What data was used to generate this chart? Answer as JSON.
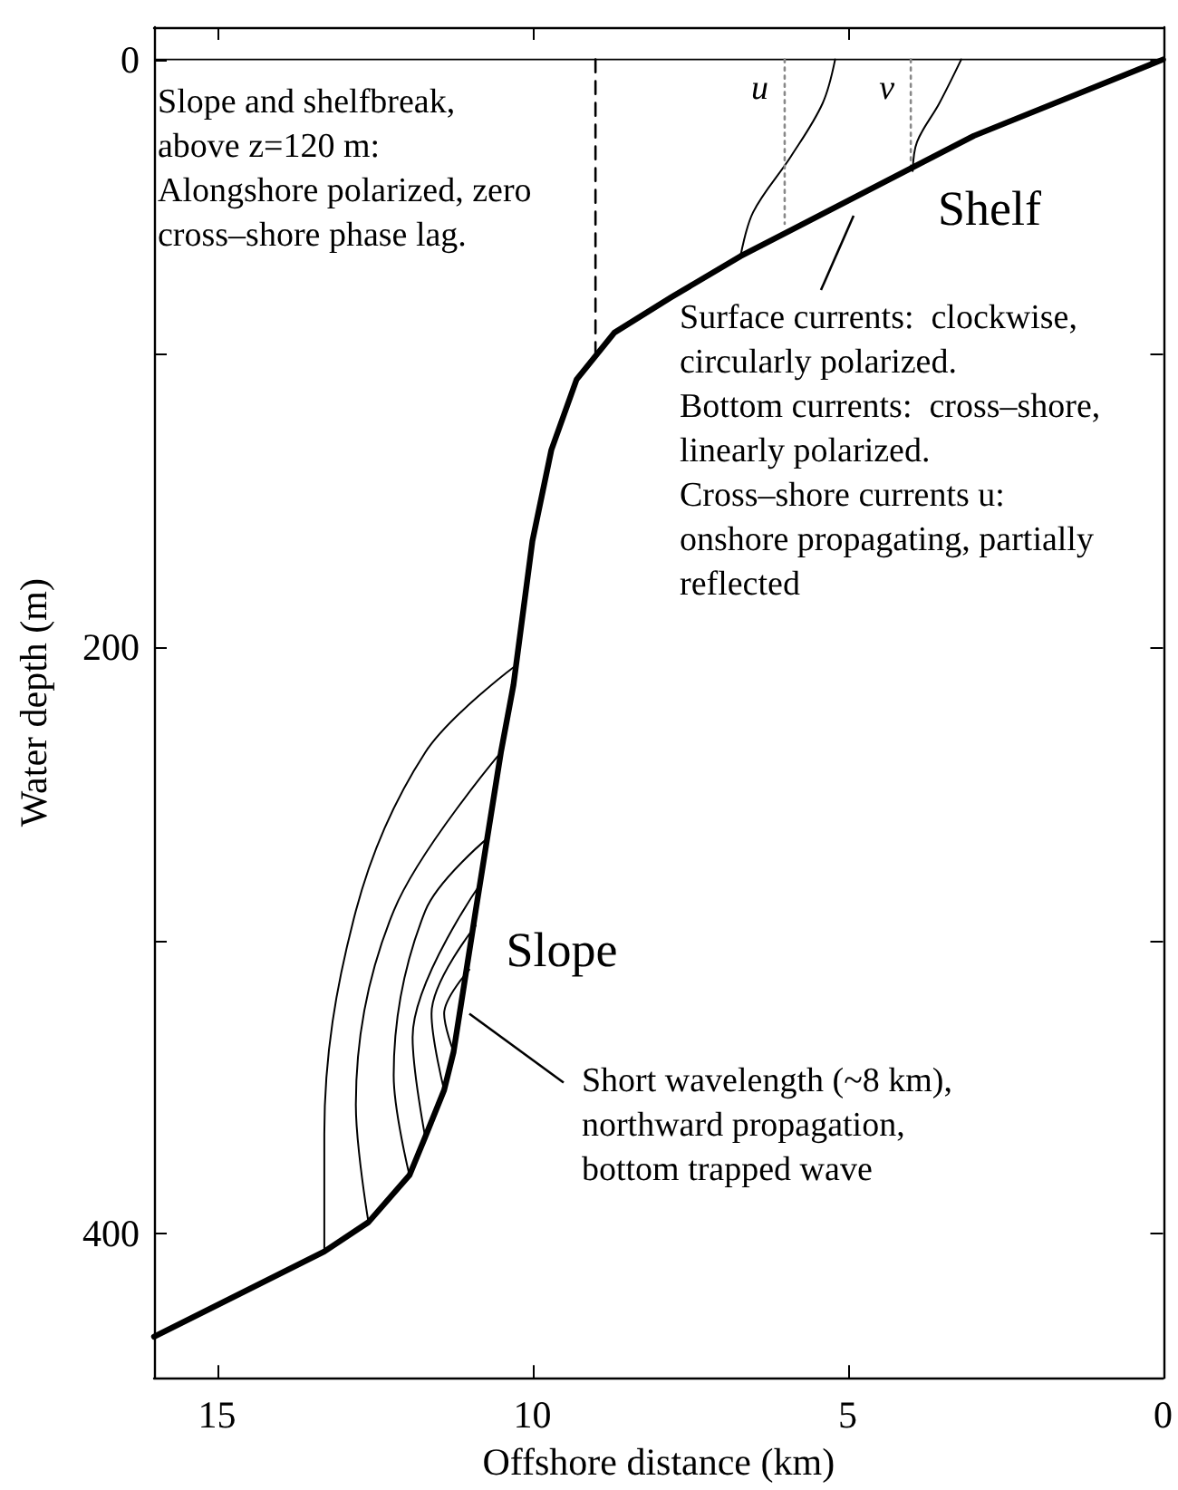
{
  "chart_data": {
    "type": "line",
    "xlabel": "Offshore distance (km)",
    "ylabel": "Water depth (m)",
    "xlim": [
      16,
      0
    ],
    "ylim": [
      449,
      -11
    ],
    "ref_lines": [
      {
        "axis": "y",
        "value": 0,
        "color": "#000000"
      }
    ],
    "xticks": [
      15,
      10,
      5,
      0
    ],
    "yticks": [
      0,
      {
        "value": 100,
        "label": null
      },
      200,
      {
        "value": 300,
        "label": null
      },
      400
    ],
    "grid": false,
    "legend": false,
    "marker": "none",
    "series": [
      {
        "color": "#000000",
        "x": [
          0,
          3.0,
          6.7,
          7.8,
          8.7,
          9.3,
          9.7,
          10.0,
          10.3,
          10.5,
          10.9,
          11.25,
          11.4,
          11.7,
          11.95,
          12.6,
          13.3,
          16.0
        ],
        "values": [
          0,
          26,
          67,
          81,
          93,
          109,
          133,
          164,
          213,
          236,
          290,
          338,
          351,
          367,
          380,
          396,
          406,
          435
        ]
      },
      {
        "color": "#000000",
        "line_style": "dashed",
        "x": [
          9,
          9
        ],
        "values": [
          0,
          103
        ]
      },
      {
        "color": "#000000",
        "x": [
          5.2,
          5.4,
          5.9,
          6.5,
          6.7
        ],
        "values": [
          0,
          15,
          33,
          52,
          67
        ]
      },
      {
        "color": "#000000",
        "x": [
          3.2,
          3.55,
          3.9,
          3.97
        ],
        "values": [
          0,
          15,
          28,
          38
        ]
      },
      {
        "name": "u",
        "color": "#888888",
        "line_style": "dotted",
        "x": [
          6,
          6
        ],
        "values": [
          0,
          56
        ]
      },
      {
        "name": "v",
        "color": "#888888",
        "line_style": "dotted",
        "x": [
          4,
          4
        ],
        "values": [
          0,
          38
        ]
      },
      {
        "color": "#000000",
        "x": [
          13.3,
          13.3,
          12.8,
          11.7,
          10.3
        ],
        "values": [
          406,
          366,
          290,
          236,
          207
        ]
      },
      {
        "color": "#000000",
        "x": [
          12.6,
          12.8,
          12.2,
          10.5
        ],
        "values": [
          396,
          356,
          290,
          236
        ]
      },
      {
        "color": "#000000",
        "x": [
          11.95,
          12.2,
          11.7,
          10.7
        ],
        "values": [
          380,
          346,
          290,
          265
        ]
      },
      {
        "color": "#000000",
        "x": [
          11.7,
          11.9,
          10.8
        ],
        "values": [
          367,
          333,
          280
        ]
      },
      {
        "color": "#000000",
        "x": [
          11.4,
          11.6,
          10.9
        ],
        "values": [
          351,
          325,
          295
        ]
      },
      {
        "color": "#000000",
        "x": [
          11.25,
          11.4,
          11.0
        ],
        "values": [
          338,
          325,
          310
        ]
      }
    ],
    "annotations": [
      "Slope and shelfbreak,\nabove z=120 m:\nAlongshore polarized, zero\ncross–shore phase lag.",
      "Shelf",
      "Surface currents:  clockwise,\ncircularly polarized.\nBottom currents:  cross–shore,\nlinearly polarized.\nCross–shore currents u:\nonshore propagating, partially\nreflected",
      "Slope",
      {
        "text": "Short wavelength (~8 km),\nnorthward propagation,\nbottom trapped wave",
        "x": 11.0,
        "y": 325
      }
    ]
  }
}
